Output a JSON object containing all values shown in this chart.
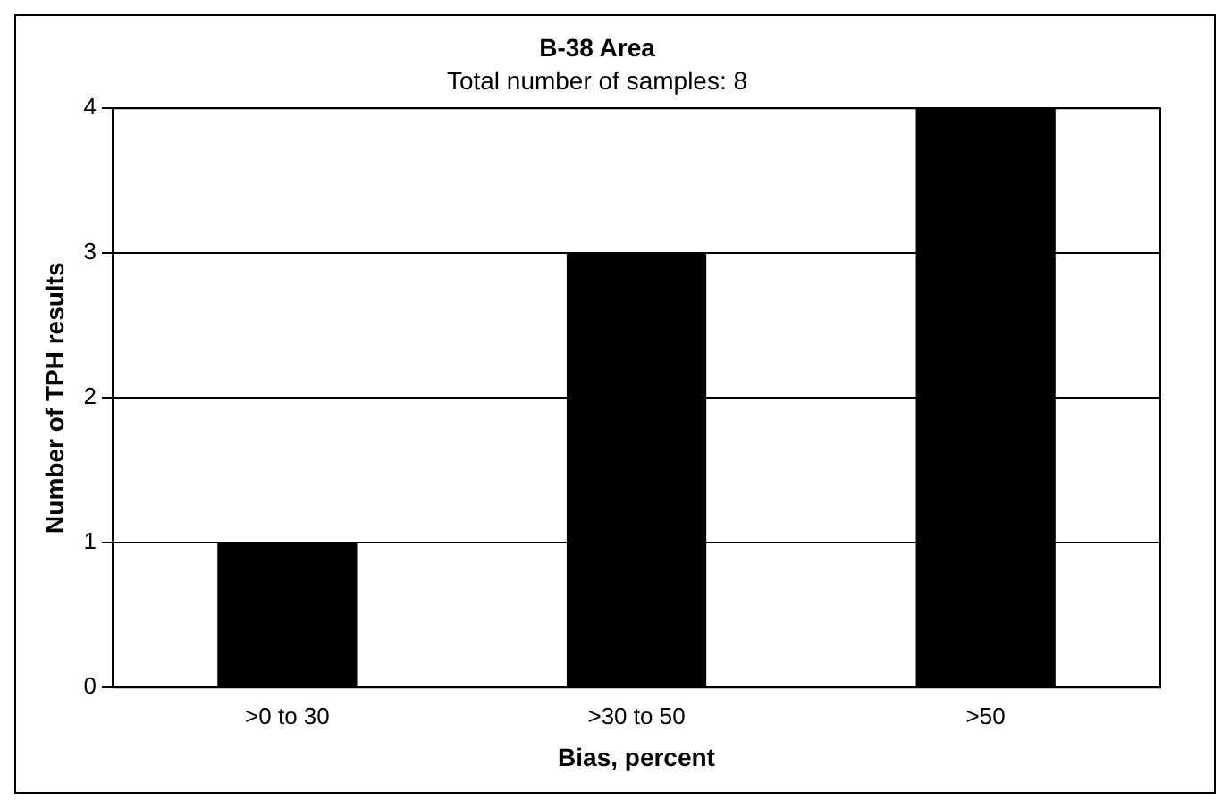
{
  "chart_data": {
    "type": "bar",
    "title": "B-38 Area",
    "subtitle": "Total number of samples: 8",
    "xlabel": "Bias, percent",
    "ylabel": "Number of TPH results",
    "categories": [
      ">0 to 30",
      ">30 to 50",
      ">50"
    ],
    "values": [
      1,
      3,
      4
    ],
    "color": "#000000",
    "ylim": [
      0,
      4
    ],
    "yticks": [
      0,
      1,
      2,
      3,
      4
    ],
    "grid": "y"
  }
}
